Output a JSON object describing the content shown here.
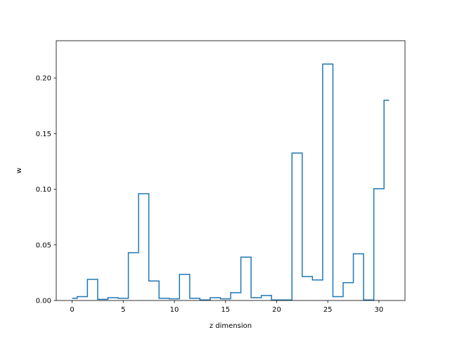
{
  "chart_data": {
    "type": "line",
    "drawstyle": "steps-mid",
    "xlabel": "z dimension",
    "ylabel": "w",
    "xlim": [
      -1.55,
      32.55
    ],
    "ylim": [
      0,
      0.2335
    ],
    "xticks": [
      0,
      5,
      10,
      15,
      20,
      25,
      30
    ],
    "yticks": [
      0.0,
      0.05,
      0.1,
      0.15,
      0.2
    ],
    "ytick_labels": [
      "0.00",
      "0.05",
      "0.10",
      "0.15",
      "0.20"
    ],
    "series": [
      {
        "color": "#1f77b4",
        "x": [
          0,
          1,
          2,
          3,
          4,
          5,
          6,
          7,
          8,
          9,
          10,
          11,
          12,
          13,
          14,
          15,
          16,
          17,
          18,
          19,
          20,
          21,
          22,
          23,
          24,
          25,
          26,
          27,
          28,
          29,
          30,
          31
        ],
        "y": [
          0.002,
          0.0035,
          0.019,
          0.001,
          0.0025,
          0.002,
          0.043,
          0.096,
          0.0175,
          0.002,
          0.0015,
          0.0235,
          0.002,
          0.0005,
          0.0025,
          0.0015,
          0.007,
          0.039,
          0.0025,
          0.0045,
          0.0005,
          0.0005,
          0.1325,
          0.0215,
          0.0185,
          0.2125,
          0.0035,
          0.016,
          0.042,
          0.0005,
          0.1005,
          0.18
        ]
      }
    ]
  }
}
